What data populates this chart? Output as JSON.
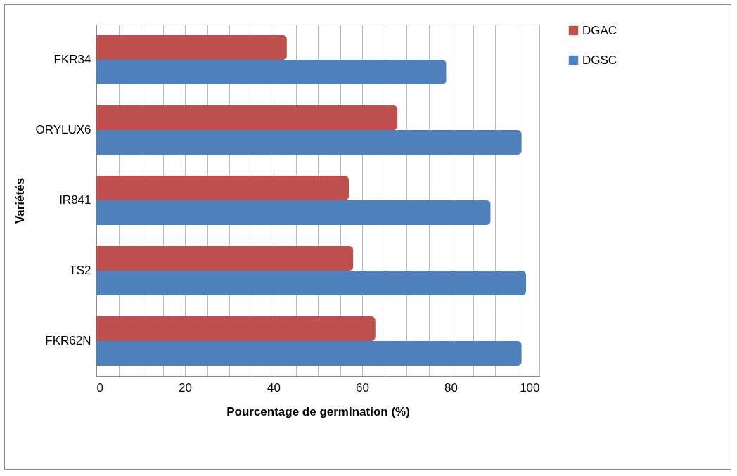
{
  "chart_data": {
    "type": "bar",
    "orientation": "horizontal",
    "xlabel": "Pourcentage de germination (%)",
    "ylabel": "Variétés",
    "categories": [
      "FKR34",
      "ORYLUX6",
      "IR841",
      "TS2",
      "FKR62N"
    ],
    "series": [
      {
        "name": "DGAC",
        "color": "#c0504d",
        "values": [
          43,
          68,
          57,
          58,
          63
        ]
      },
      {
        "name": "DGSC",
        "color": "#4f81bd",
        "values": [
          79,
          96,
          89,
          97,
          96
        ]
      }
    ],
    "xlim": [
      0,
      100
    ],
    "xticks": [
      0,
      {
        "value": 5,
        "label": null
      },
      {
        "value": 10,
        "label": null
      },
      {
        "value": 15,
        "label": null
      },
      20,
      {
        "value": 25,
        "label": null
      },
      {
        "value": 30,
        "label": null
      },
      {
        "value": 35,
        "label": null
      },
      40,
      {
        "value": 45,
        "label": null
      },
      {
        "value": 50,
        "label": null
      },
      {
        "value": 55,
        "label": null
      },
      60,
      {
        "value": 65,
        "label": null
      },
      {
        "value": 70,
        "label": null
      },
      {
        "value": 75,
        "label": null
      },
      80,
      {
        "value": 85,
        "label": null
      },
      {
        "value": 90,
        "label": null
      },
      {
        "value": 95,
        "label": null
      },
      100
    ],
    "grid": true,
    "legend": "right"
  }
}
